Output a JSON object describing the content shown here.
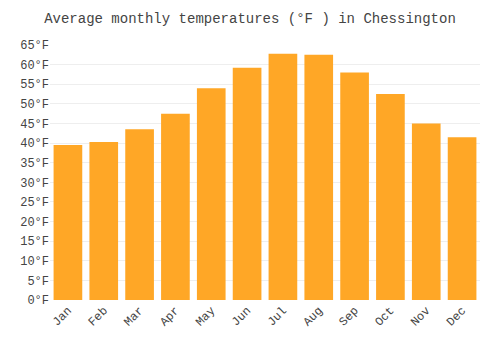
{
  "chart_data": {
    "type": "bar",
    "title": "Average monthly temperatures (°F ) in Chessington",
    "categories": [
      "Jan",
      "Feb",
      "Mar",
      "Apr",
      "May",
      "Jun",
      "Jul",
      "Aug",
      "Sep",
      "Oct",
      "Nov",
      "Dec"
    ],
    "values": [
      39.5,
      40.3,
      43.5,
      47.5,
      54.0,
      59.2,
      62.8,
      62.5,
      58.0,
      52.5,
      45.0,
      41.5
    ],
    "color": "#FFA726",
    "ylim": [
      0,
      65
    ],
    "yticks": [
      {
        "value": 0,
        "label": "0°F"
      },
      {
        "value": 5,
        "label": "5°F"
      },
      {
        "value": 10,
        "label": "10°F"
      },
      {
        "value": 15,
        "label": "15°F"
      },
      {
        "value": 20,
        "label": "20°F"
      },
      {
        "value": 25,
        "label": "25°F"
      },
      {
        "value": 30,
        "label": "30°F"
      },
      {
        "value": 35,
        "label": "35°F"
      },
      {
        "value": 40,
        "label": "40°F"
      },
      {
        "value": 45,
        "label": "45°F"
      },
      {
        "value": 50,
        "label": "50°F"
      },
      {
        "value": 55,
        "label": "55°F"
      },
      {
        "value": 60,
        "label": "60°F"
      },
      {
        "value": 65,
        "label": "65°F"
      }
    ],
    "grid": true
  }
}
